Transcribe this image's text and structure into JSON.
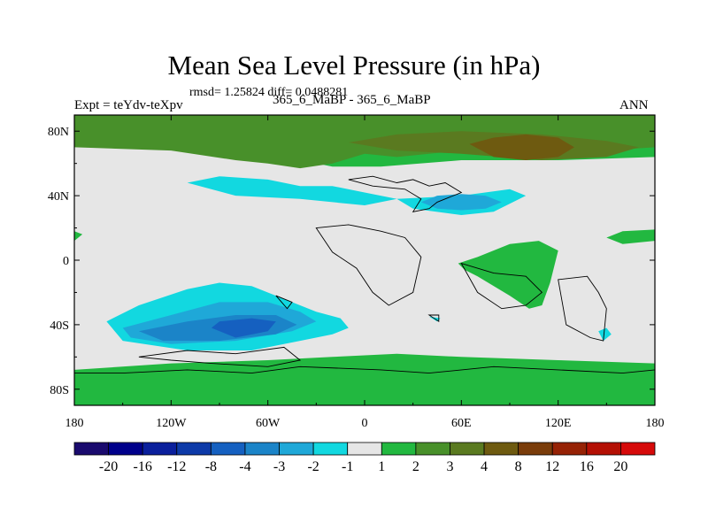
{
  "chart_data": {
    "type": "heatmap",
    "title": "Mean Sea Level Pressure (in hPa)",
    "stats": "rmsd= 1.25824 diff= 0.0488281",
    "left_label": "Expt = teYdv-teXpv",
    "center_label": "365_6_MaBP - 365_6_MaBP",
    "right_label": "ANN",
    "x_ticks": [
      "180",
      "120W",
      "60W",
      "0",
      "60E",
      "120E",
      "180"
    ],
    "y_ticks": [
      "80N",
      "40N",
      "0",
      "40S",
      "80S"
    ],
    "x_range": [
      -180,
      180
    ],
    "y_range": [
      -90,
      90
    ],
    "colorbar": {
      "labels": [
        "-20",
        "-16",
        "-12",
        "-8",
        "-4",
        "-3",
        "-2",
        "-1",
        "1",
        "2",
        "3",
        "4",
        "8",
        "12",
        "16",
        "20"
      ],
      "colors": [
        "#1a0a6e",
        "#00008b",
        "#0a1f9c",
        "#0d3aa8",
        "#1560c0",
        "#1b84c8",
        "#1fa8d8",
        "#12d8e0",
        "#e6e6e6",
        "#22b840",
        "#48902a",
        "#5a7a20",
        "#6e5a10",
        "#7a3c0a",
        "#962205",
        "#b41004",
        "#d60a0a"
      ]
    },
    "field": [
      {
        "level": "2",
        "color": "#22b840",
        "lon": [
          -180,
          -120,
          -60,
          -20,
          10,
          60,
          120,
          180,
          180,
          120,
          60,
          10,
          -60,
          -120,
          -180
        ],
        "lat": [
          78,
          72,
          66,
          58,
          58,
          62,
          62,
          64,
          90,
          90,
          90,
          90,
          90,
          90,
          90
        ]
      },
      {
        "level": "3",
        "color": "#48902a",
        "lon": [
          -180,
          -120,
          -80,
          -60,
          -40,
          -20,
          0,
          20,
          60,
          120,
          180,
          180,
          -180
        ],
        "lat": [
          70,
          68,
          62,
          60,
          57,
          60,
          66,
          64,
          68,
          66,
          70,
          90,
          90
        ]
      },
      {
        "level": "4",
        "color": "#5a7a20",
        "lon": [
          -10,
          20,
          60,
          110,
          150,
          170,
          150,
          110,
          60,
          20,
          -10
        ],
        "lat": [
          73,
          78,
          80,
          78,
          74,
          70,
          64,
          62,
          66,
          68,
          73
        ]
      },
      {
        "level": "8",
        "color": "#6e5a10",
        "lon": [
          65,
          80,
          100,
          120,
          130,
          120,
          100,
          80,
          65
        ],
        "lat": [
          72,
          76,
          78,
          76,
          70,
          64,
          62,
          64,
          72
        ]
      },
      {
        "level": "-1",
        "color": "#12d8e0",
        "lon": [
          -110,
          -90,
          -60,
          -40,
          -20,
          0,
          20,
          60,
          90,
          100,
          80,
          60,
          30,
          20,
          0,
          -40,
          -80,
          -110
        ],
        "lat": [
          48,
          52,
          50,
          46,
          46,
          42,
          38,
          40,
          44,
          40,
          30,
          28,
          32,
          38,
          34,
          38,
          40,
          48
        ]
      },
      {
        "level": "-2",
        "color": "#1fa8d8",
        "lon": [
          35,
          45,
          60,
          75,
          85,
          75,
          60,
          45,
          35
        ],
        "lat": [
          36,
          40,
          41,
          40,
          36,
          32,
          31,
          32,
          36
        ]
      },
      {
        "level": "-1",
        "color": "#12d8e0",
        "lon": [
          -160,
          -140,
          -110,
          -90,
          -70,
          -50,
          -30,
          -15,
          -10,
          -20,
          -40,
          -70,
          -110,
          -150,
          -160
        ],
        "lat": [
          -38,
          -28,
          -18,
          -14,
          -16,
          -24,
          -32,
          -36,
          -42,
          -46,
          -50,
          -56,
          -56,
          -50,
          -38
        ]
      },
      {
        "level": "-2",
        "color": "#1fa8d8",
        "lon": [
          -150,
          -120,
          -90,
          -60,
          -40,
          -30,
          -45,
          -80,
          -120,
          -145,
          -150
        ],
        "lat": [
          -42,
          -34,
          -26,
          -26,
          -32,
          -38,
          -44,
          -50,
          -52,
          -48,
          -42
        ]
      },
      {
        "level": "-3",
        "color": "#1b84c8",
        "lon": [
          -140,
          -110,
          -80,
          -55,
          -42,
          -55,
          -90,
          -125,
          -140
        ],
        "lat": [
          -44,
          -38,
          -34,
          -34,
          -40,
          -46,
          -50,
          -50,
          -44
        ]
      },
      {
        "level": "-4",
        "color": "#1560c0",
        "lon": [
          -90,
          -70,
          -55,
          -60,
          -80,
          -95,
          -90
        ],
        "lat": [
          -38,
          -36,
          -38,
          -44,
          -48,
          -42,
          -38
        ]
      },
      {
        "level": "2",
        "color": "#22b840",
        "lon": [
          -180,
          -120,
          -60,
          -20,
          20,
          60,
          120,
          180,
          180,
          120,
          60,
          0,
          -60,
          -120,
          -180
        ],
        "lat": [
          -68,
          -64,
          -62,
          -60,
          -58,
          -60,
          -62,
          -64,
          -90,
          -90,
          -90,
          -90,
          -90,
          -90,
          -90
        ]
      },
      {
        "level": "2",
        "color": "#22b840",
        "lon": [
          70,
          90,
          108,
          120,
          115,
          110,
          102,
          90,
          70,
          62,
          58,
          70
        ],
        "lat": [
          2,
          10,
          12,
          6,
          -14,
          -28,
          -30,
          -22,
          -10,
          -6,
          -2,
          2
        ]
      },
      {
        "level": "2",
        "color": "#22b840",
        "lon": [
          150,
          160,
          180,
          180,
          160,
          150
        ],
        "lat": [
          14,
          18,
          19,
          12,
          10,
          14
        ]
      },
      {
        "level": "2",
        "color": "#22b840",
        "lon": [
          -180,
          -175,
          -180
        ],
        "lat": [
          18,
          16,
          12
        ]
      },
      {
        "level": "-1",
        "color": "#12d8e0",
        "lon": [
          145,
          150,
          153,
          148,
          145
        ],
        "lat": [
          -44,
          -42,
          -46,
          -50,
          -44
        ]
      },
      {
        "level": "-1",
        "color": "#12d8e0",
        "lon": [
          40,
          47,
          45,
          40
        ],
        "lat": [
          -35,
          -36,
          -38,
          -35
        ]
      }
    ],
    "continents": [
      {
        "lon": [
          -10,
          5,
          20,
          30,
          40,
          50,
          60,
          45,
          40,
          30,
          35,
          25,
          5,
          -10
        ],
        "lat": [
          50,
          52,
          48,
          50,
          46,
          48,
          42,
          36,
          32,
          30,
          38,
          44,
          46,
          50
        ]
      },
      {
        "lon": [
          -30,
          -10,
          10,
          25,
          35,
          30,
          15,
          5,
          -5,
          -20,
          -30
        ],
        "lat": [
          20,
          22,
          18,
          14,
          2,
          -20,
          -28,
          -20,
          -5,
          5,
          20
        ]
      },
      {
        "lon": [
          -140,
          -110,
          -80,
          -50,
          -40,
          -60,
          -95,
          -120,
          -140
        ],
        "lat": [
          -60,
          -56,
          -58,
          -54,
          -62,
          -66,
          -64,
          -62,
          -60
        ]
      },
      {
        "lon": [
          -180,
          -150,
          -110,
          -70,
          -40,
          10,
          40,
          80,
          120,
          160,
          180,
          180,
          120,
          60,
          0,
          -60,
          -120,
          -180
        ],
        "lat": [
          -70,
          -70,
          -68,
          -70,
          -66,
          -68,
          -70,
          -66,
          -68,
          -70,
          -68,
          -90,
          -90,
          -90,
          -90,
          -90,
          -90,
          -90
        ]
      },
      {
        "lon": [
          60,
          80,
          100,
          110,
          100,
          85,
          70,
          60
        ],
        "lat": [
          -2,
          -8,
          -10,
          -20,
          -28,
          -30,
          -20,
          -2
        ]
      },
      {
        "lon": [
          120,
          138,
          145,
          150,
          148,
          140,
          125,
          120
        ],
        "lat": [
          -12,
          -10,
          -20,
          -30,
          -50,
          -48,
          -40,
          -12
        ]
      },
      {
        "lon": [
          -55,
          -45,
          -48,
          -55
        ],
        "lat": [
          -22,
          -26,
          -30,
          -22
        ]
      },
      {
        "lon": [
          40,
          46,
          46,
          40
        ],
        "lat": [
          -34,
          -34,
          -38,
          -34
        ]
      }
    ]
  }
}
